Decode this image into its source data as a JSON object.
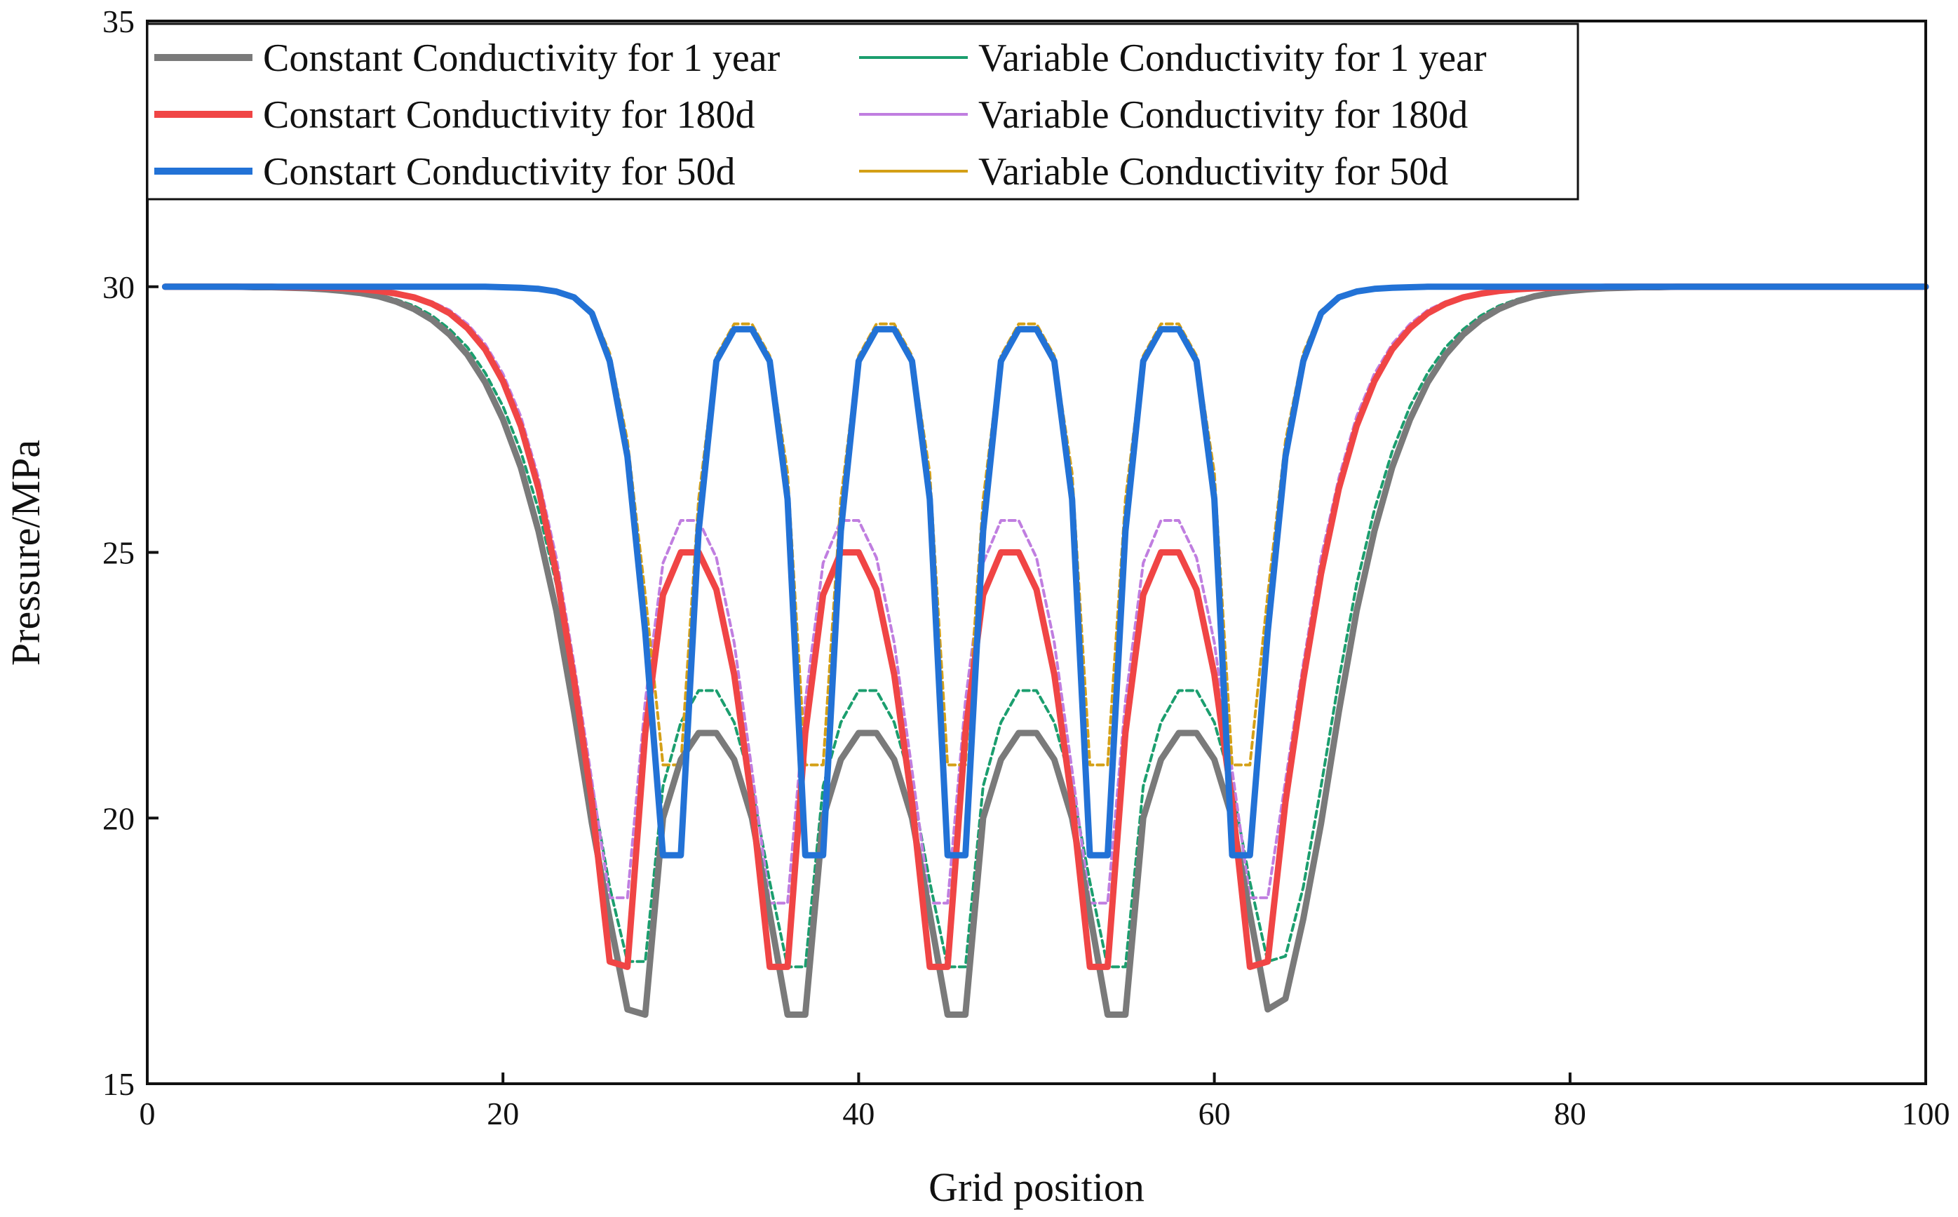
{
  "chart_data": {
    "type": "line",
    "title": "",
    "xlabel": "Grid position",
    "ylabel": "Pressure/MPa",
    "xlim": [
      0,
      100
    ],
    "ylim": [
      15,
      35
    ],
    "xticks": [
      0,
      20,
      40,
      60,
      80,
      100
    ],
    "yticks": [
      15,
      20,
      25,
      30,
      35
    ],
    "xtick_labels": [
      "0",
      "20",
      "40",
      "60",
      "80",
      "100"
    ],
    "ytick_labels": [
      "15",
      "20",
      "25",
      "30",
      "35"
    ],
    "legend_position": "top-left",
    "x": [
      1,
      2,
      3,
      4,
      5,
      6,
      7,
      8,
      9,
      10,
      11,
      12,
      13,
      14,
      15,
      16,
      17,
      18,
      19,
      20,
      21,
      22,
      23,
      24,
      25,
      26,
      27,
      28,
      29,
      30,
      31,
      32,
      33,
      34,
      35,
      36,
      37,
      38,
      39,
      40,
      41,
      42,
      43,
      44,
      45,
      46,
      47,
      48,
      49,
      50,
      51,
      52,
      53,
      54,
      55,
      56,
      57,
      58,
      59,
      60,
      61,
      62,
      63,
      64,
      65,
      66,
      67,
      68,
      69,
      70,
      71,
      72,
      73,
      74,
      75,
      76,
      77,
      78,
      79,
      80,
      81,
      82,
      83,
      84,
      85,
      86,
      87,
      88,
      89,
      90,
      91,
      92,
      93,
      94,
      95,
      96,
      97,
      98,
      99,
      100
    ],
    "series": [
      {
        "name": "Constant Conductivity for 1 year",
        "color": "#7a7a7a",
        "style": "solid-thick",
        "values": [
          30,
          30,
          30,
          30,
          30,
          29.99,
          29.99,
          29.98,
          29.97,
          29.95,
          29.92,
          29.88,
          29.82,
          29.72,
          29.58,
          29.38,
          29.1,
          28.72,
          28.2,
          27.5,
          26.6,
          25.4,
          23.9,
          22,
          19.9,
          18.1,
          16.4,
          16.3,
          20,
          21.1,
          21.6,
          21.6,
          21.1,
          20,
          18.2,
          16.3,
          16.3,
          20,
          21.1,
          21.6,
          21.6,
          21.1,
          20,
          18.2,
          16.3,
          16.3,
          20,
          21.1,
          21.6,
          21.6,
          21.1,
          20,
          18.2,
          16.3,
          16.3,
          20,
          21.1,
          21.6,
          21.6,
          21.1,
          20,
          18.2,
          16.4,
          16.6,
          18.1,
          19.9,
          22,
          23.9,
          25.4,
          26.6,
          27.5,
          28.2,
          28.72,
          29.1,
          29.38,
          29.58,
          29.72,
          29.82,
          29.88,
          29.92,
          29.95,
          29.97,
          29.98,
          29.99,
          29.99,
          30,
          30,
          30,
          30,
          30,
          30,
          30,
          30,
          30,
          30,
          30,
          30,
          30,
          30,
          30
        ]
      },
      {
        "name": "Constart Conductivity for 180d",
        "color": "#f04545",
        "style": "solid-thick",
        "values": [
          30,
          30,
          30,
          30,
          30,
          30,
          30,
          29.99,
          29.99,
          29.98,
          29.97,
          29.95,
          29.92,
          29.87,
          29.8,
          29.68,
          29.5,
          29.22,
          28.82,
          28.22,
          27.38,
          26.2,
          24.6,
          22.6,
          20.3,
          17.3,
          17.2,
          21.6,
          24.2,
          25.0,
          25.0,
          24.3,
          22.7,
          20.3,
          17.2,
          17.2,
          21.6,
          24.2,
          25.0,
          25.0,
          24.3,
          22.7,
          20.3,
          17.2,
          17.2,
          21.6,
          24.2,
          25.0,
          25.0,
          24.3,
          22.7,
          20.3,
          17.2,
          17.2,
          21.6,
          24.2,
          25.0,
          25.0,
          24.3,
          22.7,
          20.3,
          17.2,
          17.3,
          20.3,
          22.6,
          24.6,
          26.2,
          27.38,
          28.22,
          28.82,
          29.22,
          29.5,
          29.68,
          29.8,
          29.87,
          29.92,
          29.95,
          29.97,
          29.98,
          29.99,
          29.99,
          30,
          30,
          30,
          30,
          30,
          30,
          30,
          30,
          30,
          30,
          30,
          30,
          30,
          30,
          30,
          30,
          30,
          30,
          30
        ]
      },
      {
        "name": "Constart Conductivity for 50d",
        "color": "#2272d6",
        "style": "solid-thick",
        "values": [
          30,
          30,
          30,
          30,
          30,
          30,
          30,
          30,
          30,
          30,
          30,
          30,
          30,
          30,
          30,
          30,
          30,
          30,
          30,
          29.99,
          29.98,
          29.96,
          29.91,
          29.8,
          29.5,
          28.6,
          26.8,
          23.5,
          19.3,
          19.3,
          25.4,
          28.6,
          29.2,
          29.2,
          28.6,
          26.0,
          19.3,
          19.3,
          25.4,
          28.6,
          29.2,
          29.2,
          28.6,
          26.0,
          19.3,
          19.3,
          25.4,
          28.6,
          29.2,
          29.2,
          28.6,
          26.0,
          19.3,
          19.3,
          25.4,
          28.6,
          29.2,
          29.2,
          28.6,
          26.0,
          19.3,
          19.3,
          23.5,
          26.8,
          28.6,
          29.5,
          29.8,
          29.91,
          29.96,
          29.98,
          29.99,
          30,
          30,
          30,
          30,
          30,
          30,
          30,
          30,
          30,
          30,
          30,
          30,
          30,
          30,
          30,
          30,
          30,
          30,
          30,
          30,
          30,
          30,
          30,
          30,
          30,
          30,
          30,
          30,
          30
        ]
      },
      {
        "name": "Variable Conductivity for 1 year",
        "color": "#1b9e6e",
        "style": "dashed",
        "values": [
          30,
          30,
          30,
          30,
          30,
          29.99,
          29.99,
          29.98,
          29.97,
          29.96,
          29.93,
          29.9,
          29.85,
          29.76,
          29.64,
          29.46,
          29.2,
          28.86,
          28.38,
          27.75,
          26.9,
          25.8,
          24.4,
          22.6,
          20.6,
          18.7,
          17.3,
          17.3,
          20.6,
          21.8,
          22.4,
          22.4,
          21.8,
          20.6,
          18.8,
          17.2,
          17.2,
          20.6,
          21.8,
          22.4,
          22.4,
          21.8,
          20.6,
          18.8,
          17.2,
          17.2,
          20.6,
          21.8,
          22.4,
          22.4,
          21.8,
          20.6,
          18.8,
          17.2,
          17.2,
          20.6,
          21.8,
          22.4,
          22.4,
          21.8,
          20.6,
          18.8,
          17.3,
          17.4,
          18.7,
          20.6,
          22.6,
          24.4,
          25.8,
          26.9,
          27.75,
          28.38,
          28.86,
          29.2,
          29.46,
          29.64,
          29.76,
          29.85,
          29.9,
          29.93,
          29.96,
          29.97,
          29.98,
          29.99,
          29.99,
          30,
          30,
          30,
          30,
          30,
          30,
          30,
          30,
          30,
          30,
          30,
          30,
          30,
          30,
          30
        ]
      },
      {
        "name": "Variable Conductivity for 180d",
        "color": "#c07ee0",
        "style": "dashed",
        "values": [
          30,
          30,
          30,
          30,
          30,
          30,
          30,
          29.99,
          29.99,
          29.98,
          29.97,
          29.96,
          29.93,
          29.89,
          29.82,
          29.72,
          29.56,
          29.3,
          28.92,
          28.36,
          27.56,
          26.4,
          24.9,
          22.9,
          20.7,
          18.5,
          18.5,
          22.2,
          24.8,
          25.6,
          25.6,
          24.9,
          23.3,
          20.9,
          18.4,
          18.4,
          22.2,
          24.8,
          25.6,
          25.6,
          24.9,
          23.3,
          20.9,
          18.4,
          18.4,
          22.2,
          24.8,
          25.6,
          25.6,
          24.9,
          23.3,
          20.9,
          18.4,
          18.4,
          22.2,
          24.8,
          25.6,
          25.6,
          24.9,
          23.3,
          20.9,
          18.5,
          18.5,
          20.7,
          22.9,
          24.9,
          26.4,
          27.56,
          28.36,
          28.92,
          29.3,
          29.56,
          29.72,
          29.82,
          29.89,
          29.93,
          29.96,
          29.97,
          29.98,
          29.99,
          29.99,
          30,
          30,
          30,
          30,
          30,
          30,
          30,
          30,
          30,
          30,
          30,
          30,
          30,
          30,
          30,
          30,
          30,
          30,
          30
        ]
      },
      {
        "name": "Variable Conductivity for 50d",
        "color": "#d4a017",
        "style": "dashed",
        "values": [
          30,
          30,
          30,
          30,
          30,
          30,
          30,
          30,
          30,
          30,
          30,
          30,
          30,
          30,
          30,
          30,
          30,
          30,
          30,
          29.99,
          29.98,
          29.96,
          29.92,
          29.82,
          29.55,
          28.75,
          27.1,
          24.2,
          21.0,
          21.0,
          26.0,
          28.7,
          29.3,
          29.3,
          28.7,
          26.5,
          21.0,
          21.0,
          26.0,
          28.7,
          29.3,
          29.3,
          28.7,
          26.5,
          21.0,
          21.0,
          26.0,
          28.7,
          29.3,
          29.3,
          28.7,
          26.5,
          21.0,
          21.0,
          26.0,
          28.7,
          29.3,
          29.3,
          28.7,
          26.5,
          21.0,
          21.0,
          24.2,
          27.1,
          28.75,
          29.55,
          29.82,
          29.92,
          29.96,
          29.98,
          29.99,
          30,
          30,
          30,
          30,
          30,
          30,
          30,
          30,
          30,
          30,
          30,
          30,
          30,
          30,
          30,
          30,
          30,
          30,
          30,
          30,
          30,
          30,
          30,
          30,
          30,
          30,
          30,
          30,
          30
        ]
      }
    ]
  }
}
